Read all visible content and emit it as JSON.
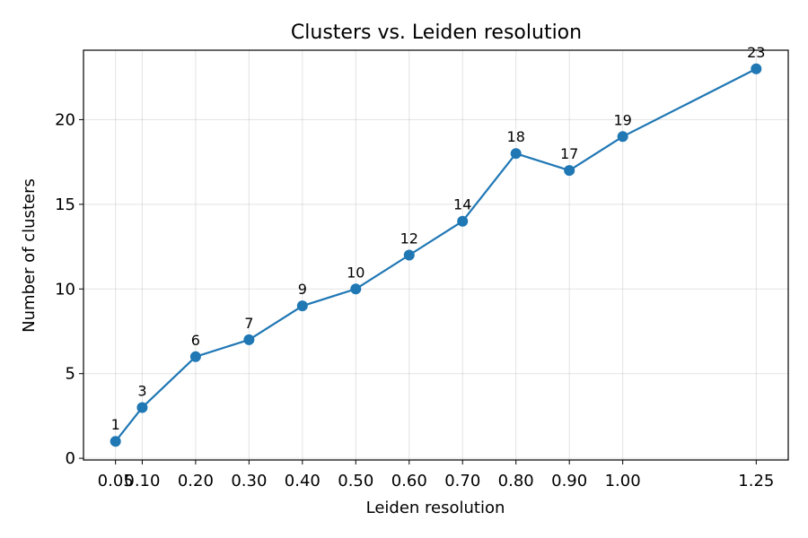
{
  "chart_data": {
    "type": "line",
    "title": "Clusters vs. Leiden resolution",
    "xlabel": "Leiden resolution",
    "ylabel": "Number of clusters",
    "x": [
      0.05,
      0.1,
      0.2,
      0.3,
      0.4,
      0.5,
      0.6,
      0.7,
      0.8,
      0.9,
      1.0,
      1.25
    ],
    "x_tick_labels": [
      "0.05",
      "0.10",
      "0.20",
      "0.30",
      "0.40",
      "0.50",
      "0.60",
      "0.70",
      "0.80",
      "0.90",
      "1.00",
      "1.25"
    ],
    "series": [
      {
        "values": [
          1,
          3,
          6,
          7,
          9,
          10,
          12,
          14,
          18,
          17,
          19,
          23
        ],
        "color": "#1f77b4"
      }
    ],
    "data_labels": [
      "1",
      "3",
      "6",
      "7",
      "9",
      "10",
      "12",
      "14",
      "18",
      "17",
      "19",
      "23"
    ],
    "y_ticks": [
      0,
      5,
      10,
      15,
      20
    ],
    "xlim": [
      -0.01,
      1.31
    ],
    "ylim": [
      -0.1,
      24.1
    ],
    "grid": true,
    "legend": "none"
  }
}
